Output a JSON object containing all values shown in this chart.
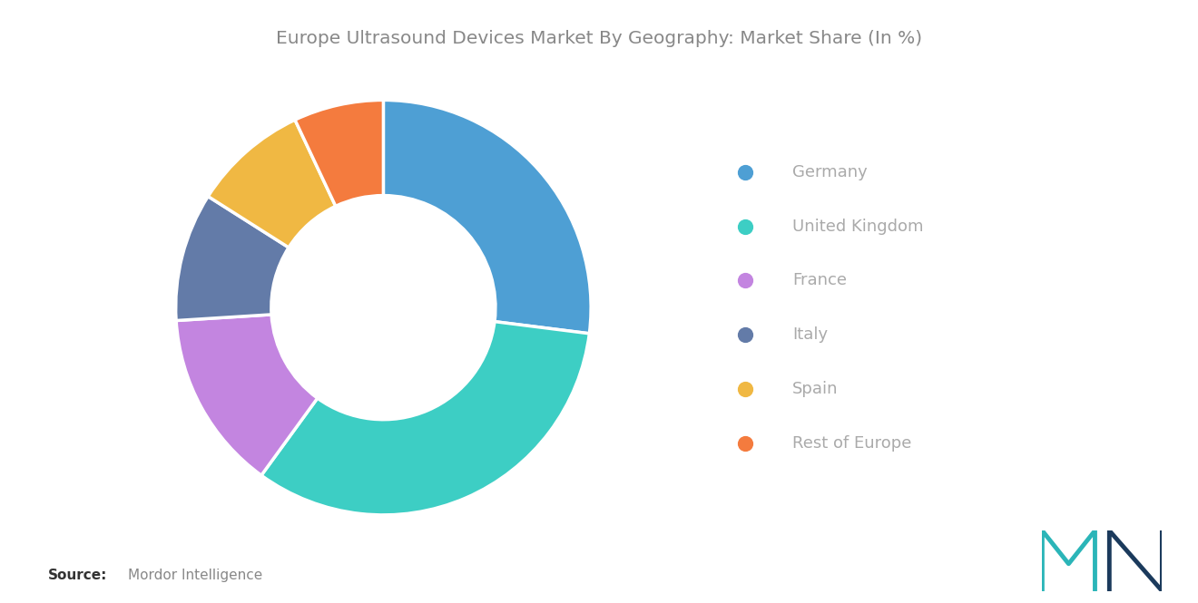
{
  "title": "Europe Ultrasound Devices Market By Geography: Market Share (In %)",
  "labels": [
    "Germany",
    "United Kingdom",
    "France",
    "Italy",
    "Spain",
    "Rest of Europe"
  ],
  "values": [
    27,
    33,
    14,
    10,
    9,
    7
  ],
  "colors": [
    "#4E9FD4",
    "#3DCEC4",
    "#C385E0",
    "#637BA8",
    "#F0B843",
    "#F47B3E"
  ],
  "background_color": "#ffffff",
  "title_color": "#888888",
  "legend_text_color": "#aaaaaa",
  "title_fontsize": 14.5,
  "legend_fontsize": 13,
  "source_label": "Source:",
  "source_detail": "Mordor Intelligence",
  "startangle": 90
}
